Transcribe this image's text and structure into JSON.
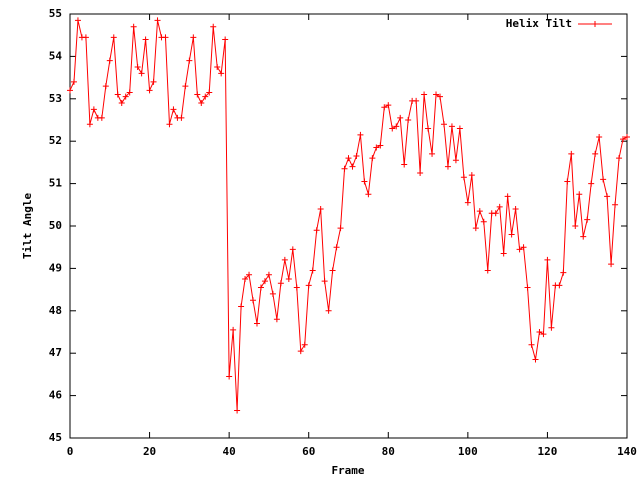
{
  "chart_data": {
    "type": "line",
    "x_label": "Frame",
    "y_label": "Tilt Angle",
    "xlim": [
      0,
      140
    ],
    "xticks": [
      0,
      20,
      40,
      60,
      80,
      100,
      120,
      140
    ],
    "ylim": [
      45,
      55
    ],
    "yticks": [
      45,
      46,
      47,
      48,
      49,
      50,
      51,
      52,
      53,
      54,
      55
    ],
    "legend": "top-right",
    "x": [
      0,
      1,
      2,
      3,
      4,
      5,
      6,
      7,
      8,
      9,
      10,
      11,
      12,
      13,
      14,
      15,
      16,
      17,
      18,
      19,
      20,
      21,
      22,
      23,
      24,
      25,
      26,
      27,
      28,
      29,
      30,
      31,
      32,
      33,
      34,
      35,
      36,
      37,
      38,
      39,
      40,
      41,
      42,
      43,
      44,
      45,
      46,
      47,
      48,
      49,
      50,
      51,
      52,
      53,
      54,
      55,
      56,
      57,
      58,
      59,
      60,
      61,
      62,
      63,
      64,
      65,
      66,
      67,
      68,
      69,
      70,
      71,
      72,
      73,
      74,
      75,
      76,
      77,
      78,
      79,
      80,
      81,
      82,
      83,
      84,
      85,
      86,
      87,
      88,
      89,
      90,
      91,
      92,
      93,
      94,
      95,
      96,
      97,
      98,
      99,
      100,
      101,
      102,
      103,
      104,
      105,
      106,
      107,
      108,
      109,
      110,
      111,
      112,
      113,
      114,
      115,
      116,
      117,
      118,
      119,
      120,
      121,
      122,
      123,
      124,
      125,
      126,
      127,
      128,
      129,
      130,
      131,
      132,
      133,
      134,
      135,
      136,
      137,
      138,
      139,
      140
    ],
    "series": [
      {
        "name": "Helix Tilt",
        "color": "#ff0000",
        "values": [
          53.2,
          53.4,
          54.85,
          54.45,
          54.45,
          52.4,
          52.75,
          52.55,
          52.55,
          53.3,
          53.9,
          54.45,
          53.1,
          52.9,
          53.05,
          53.15,
          54.7,
          53.75,
          53.6,
          54.4,
          53.2,
          53.4,
          54.85,
          54.45,
          54.45,
          52.4,
          52.75,
          52.55,
          52.55,
          53.3,
          53.9,
          54.45,
          53.1,
          52.9,
          53.05,
          53.15,
          54.7,
          53.75,
          53.6,
          54.4,
          46.45,
          47.55,
          45.65,
          48.1,
          48.75,
          48.85,
          48.25,
          47.7,
          48.55,
          48.7,
          48.85,
          48.4,
          47.8,
          48.65,
          49.2,
          48.75,
          49.45,
          48.55,
          47.05,
          47.2,
          48.6,
          48.95,
          49.9,
          50.4,
          48.7,
          48.0,
          48.95,
          49.5,
          49.95,
          51.35,
          51.6,
          51.4,
          51.65,
          52.15,
          51.05,
          50.75,
          51.6,
          51.85,
          51.9,
          52.8,
          52.85,
          52.3,
          52.35,
          52.55,
          51.45,
          52.5,
          52.95,
          52.95,
          51.25,
          53.1,
          52.3,
          51.7,
          53.1,
          53.05,
          52.4,
          51.4,
          52.35,
          51.55,
          52.3,
          51.15,
          50.55,
          51.2,
          49.95,
          50.35,
          50.1,
          48.95,
          50.3,
          50.3,
          50.45,
          49.35,
          50.7,
          49.8,
          50.4,
          49.45,
          49.5,
          48.55,
          47.2,
          46.85,
          47.5,
          47.45,
          49.2,
          47.6,
          48.6,
          48.6,
          48.9,
          51.05,
          51.7,
          50.0,
          50.75,
          49.75,
          50.15,
          51.0,
          51.7,
          52.1,
          51.1,
          50.7,
          49.1,
          50.5,
          51.6,
          52.05,
          52.1
        ]
      }
    ]
  }
}
